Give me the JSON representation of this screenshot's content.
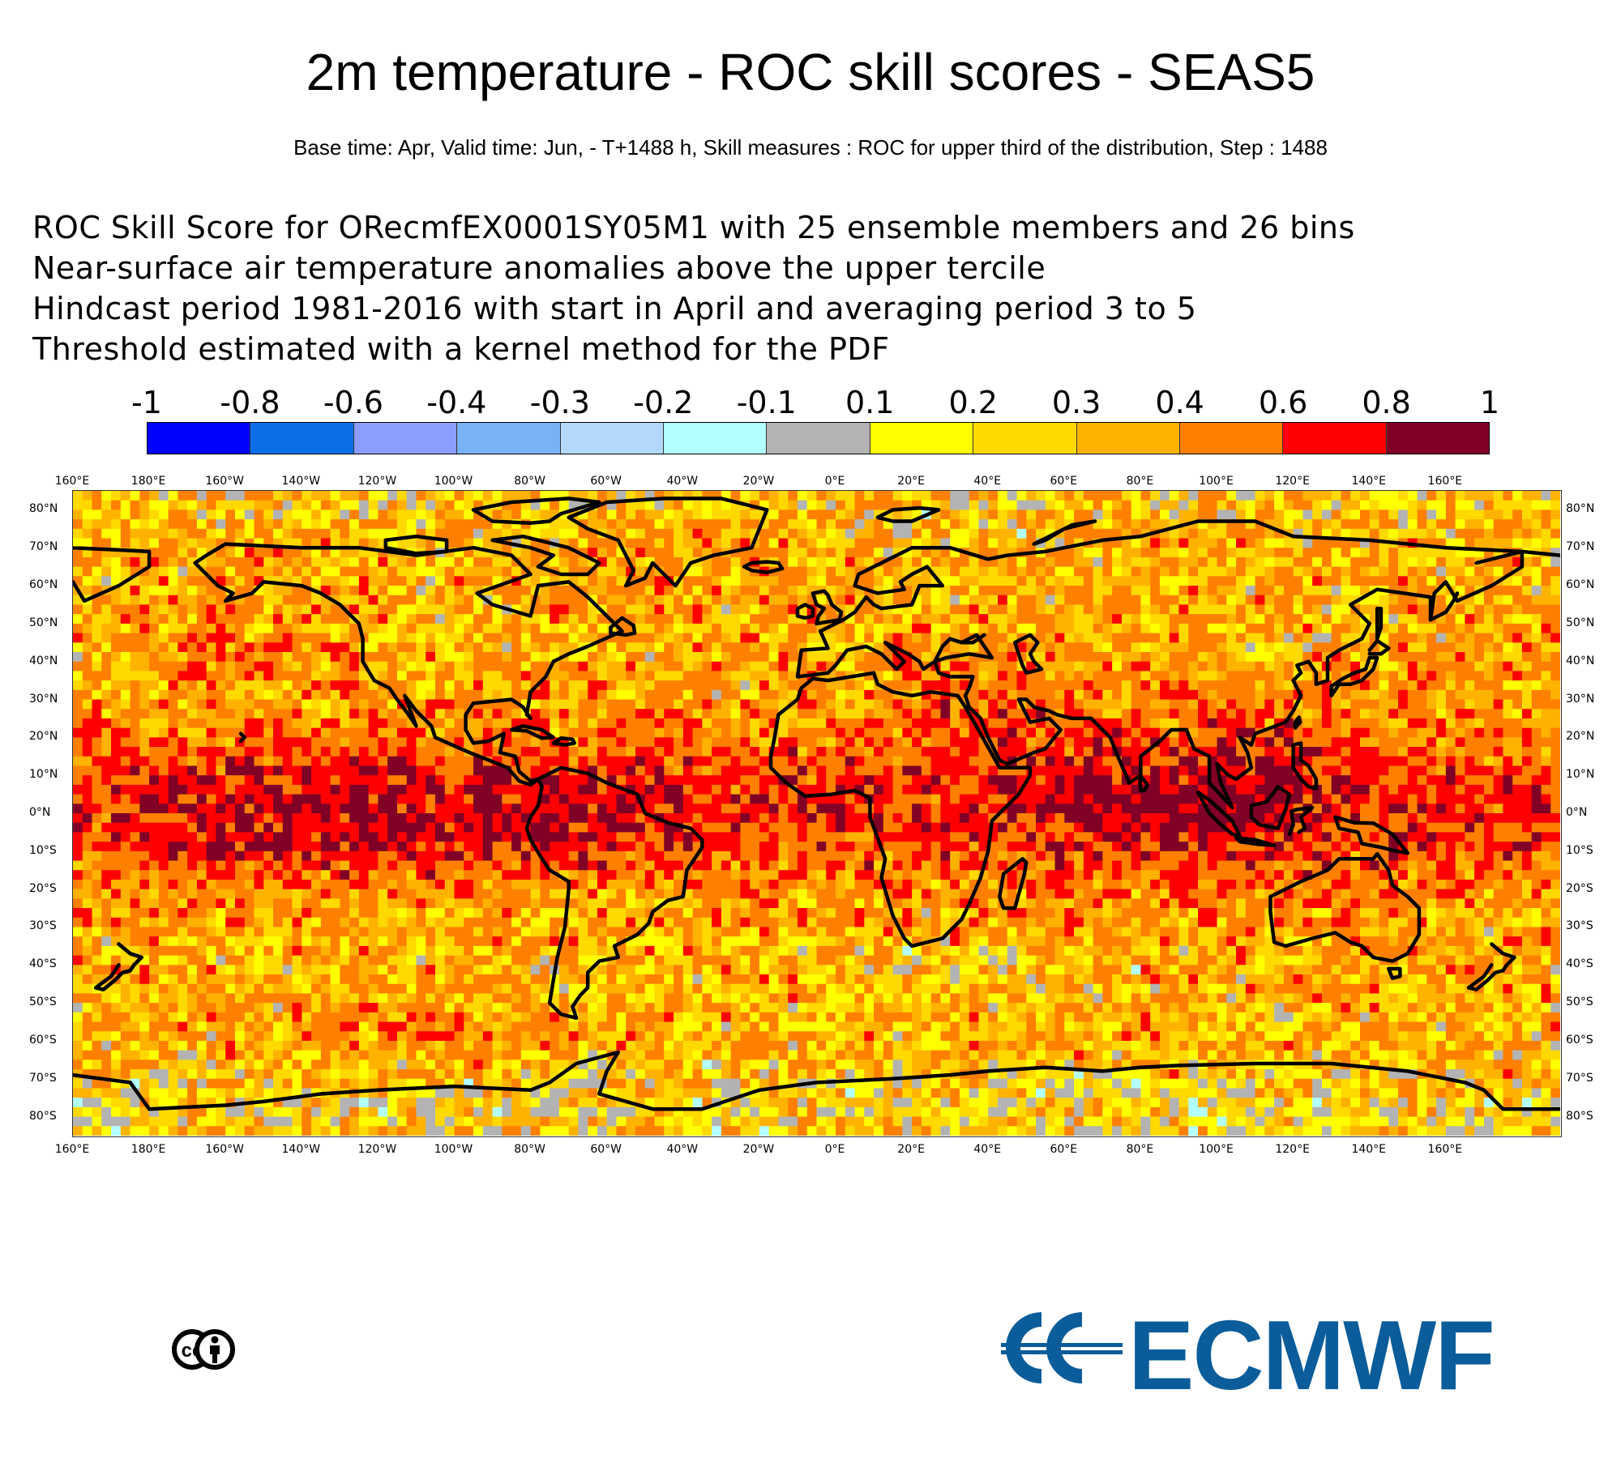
{
  "title": "2m temperature - ROC skill scores - SEAS5",
  "subtitle": "Base time: Apr, Valid time: Jun, - T+1488 h, Skill measures : ROC for upper third of the distribution, Step : 1488",
  "description": [
    "ROC Skill Score for ORecmfEX0001SY05M1 with 25 ensemble members and 26 bins",
    "Near-surface air temperature anomalies above the upper tercile",
    "Hindcast period 1981-2016 with start in April and averaging period  3 to  5",
    "Threshold estimated with a kernel method for the PDF"
  ],
  "colorbar": {
    "labels": [
      "-1",
      "-0.8",
      "-0.6",
      "-0.4",
      "-0.3",
      "-0.2",
      "-0.1",
      "0.1",
      "0.2",
      "0.3",
      "0.4",
      "0.6",
      "0.8",
      "1"
    ],
    "colors": [
      "#0000ff",
      "#0d6fe8",
      "#8c9cff",
      "#7ab3f5",
      "#b3d9fa",
      "#b3ffff",
      "#b3b3b3",
      "#ffff00",
      "#ffd900",
      "#ffb300",
      "#ff8000",
      "#ff0000",
      "#800026"
    ]
  },
  "map": {
    "lon_labels": [
      "160°E",
      "180°E",
      "160°W",
      "140°W",
      "120°W",
      "100°W",
      "80°W",
      "60°W",
      "40°W",
      "20°W",
      "0°E",
      "20°E",
      "40°E",
      "60°E",
      "80°E",
      "100°E",
      "120°E",
      "140°E",
      "160°E"
    ],
    "lat_labels": [
      "80°N",
      "70°N",
      "60°N",
      "50°N",
      "40°N",
      "30°N",
      "20°N",
      "10°N",
      "0°N",
      "10°S",
      "20°S",
      "30°S",
      "40°S",
      "50°S",
      "60°S",
      "70°S",
      "80°S"
    ],
    "lon_range": [
      -200,
      190
    ],
    "lat_range": [
      -85,
      85
    ],
    "cell_deg": 2.5,
    "coastline_color": "#000000"
  },
  "logos": {
    "cc_text": "cc",
    "ecmwf_text": "ECMWF",
    "ecmwf_color": "#0a5c9a"
  }
}
